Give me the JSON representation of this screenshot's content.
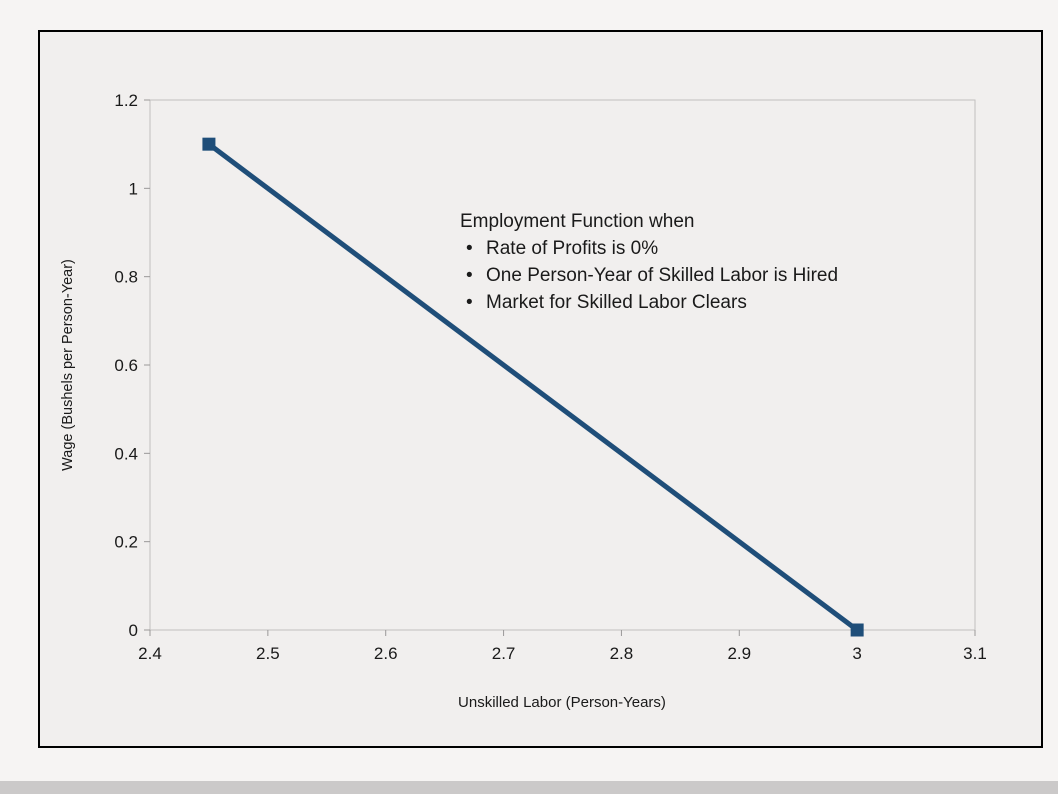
{
  "chart_data": {
    "type": "line",
    "title": "",
    "xlabel": "Unskilled Labor (Person-Years)",
    "ylabel": "Wage (Bushels per Person-Year)",
    "xlim": [
      2.4,
      3.1
    ],
    "ylim": [
      0,
      1.2
    ],
    "x_ticks": [
      2.4,
      2.5,
      2.6,
      2.7,
      2.8,
      2.9,
      3,
      3.1
    ],
    "y_ticks": [
      0,
      0.2,
      0.4,
      0.6,
      0.8,
      1,
      1.2
    ],
    "grid": false,
    "legend": "none",
    "series": [
      {
        "name": "Employment Function",
        "points": [
          [
            2.45,
            1.1
          ],
          [
            3.0,
            0.0
          ]
        ],
        "color": "#1f4e79",
        "marker": "square",
        "line_width": 5
      }
    ],
    "annotation": {
      "title": "Employment Function when",
      "bullet_glyph": "•",
      "bullets": [
        "Rate of Profits is 0%",
        "One Person-Year of Skilled Labor is Hired",
        "Market for Skilled Labor Clears"
      ]
    }
  },
  "colors": {
    "line": "#1f4e79",
    "plot_border": "#c1bfbf",
    "tick": "#9a9898",
    "chart_background": "#f1efee",
    "frame_border": "#000000",
    "text": "#1a1a1a"
  }
}
